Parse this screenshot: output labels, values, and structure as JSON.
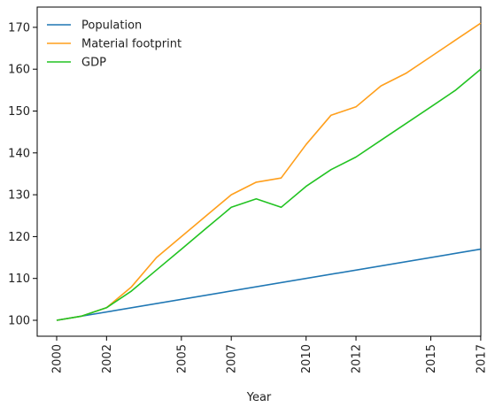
{
  "chart_data": {
    "type": "line",
    "title": "",
    "xlabel": "Year",
    "ylabel": "",
    "x": [
      2000,
      2001,
      2002,
      2003,
      2004,
      2005,
      2006,
      2007,
      2008,
      2009,
      2010,
      2011,
      2012,
      2013,
      2014,
      2015,
      2016,
      2017
    ],
    "xlim": [
      2000,
      2017
    ],
    "ylim": [
      98,
      172
    ],
    "x_ticks": [
      2000,
      2002,
      2005,
      2007,
      2010,
      2012,
      2015,
      2017
    ],
    "x_tick_labels": [
      "2000",
      "2002",
      "2005",
      "2007",
      "2010",
      "2012",
      "2015",
      "2017"
    ],
    "y_ticks": [
      100,
      110,
      120,
      130,
      140,
      150,
      160,
      170
    ],
    "y_tick_labels": [
      "100",
      "110",
      "120",
      "130",
      "140",
      "150",
      "160",
      "170"
    ],
    "grid": false,
    "legend_position": "top-left",
    "series": [
      {
        "name": "Population",
        "color": "#1f77b4",
        "points": [
          [
            2000,
            100
          ],
          [
            2017,
            117
          ]
        ]
      },
      {
        "name": "Material footprint",
        "color": "#ff9f1c",
        "points": [
          [
            2000,
            100
          ],
          [
            2001,
            101
          ],
          [
            2002,
            103
          ],
          [
            2003,
            108
          ],
          [
            2004,
            115
          ],
          [
            2005,
            120
          ],
          [
            2006,
            125
          ],
          [
            2007,
            130
          ],
          [
            2008,
            133
          ],
          [
            2009,
            134
          ],
          [
            2010,
            142
          ],
          [
            2011,
            149
          ],
          [
            2012,
            151
          ],
          [
            2013,
            156
          ],
          [
            2014,
            159
          ],
          [
            2015,
            163
          ],
          [
            2016,
            167
          ],
          [
            2017,
            171
          ]
        ]
      },
      {
        "name": "GDP",
        "color": "#22c322",
        "points": [
          [
            2000,
            100
          ],
          [
            2001,
            101
          ],
          [
            2002,
            103
          ],
          [
            2003,
            107
          ],
          [
            2004,
            112
          ],
          [
            2005,
            117
          ],
          [
            2006,
            122
          ],
          [
            2007,
            127
          ],
          [
            2008,
            129
          ],
          [
            2009,
            127
          ],
          [
            2010,
            132
          ],
          [
            2011,
            136
          ],
          [
            2012,
            139
          ],
          [
            2013,
            143
          ],
          [
            2014,
            147
          ],
          [
            2015,
            151
          ],
          [
            2016,
            155
          ],
          [
            2017,
            160
          ]
        ]
      }
    ]
  }
}
